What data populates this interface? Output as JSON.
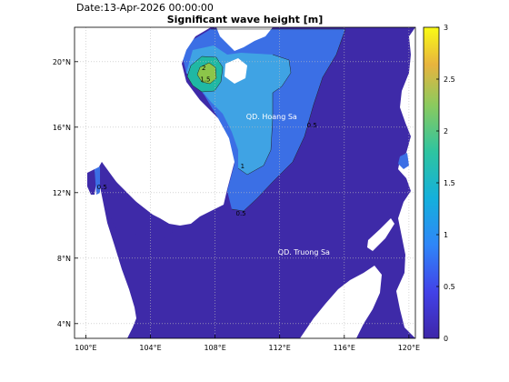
{
  "date_text": "Date:13-Apr-2026 00:00:00",
  "title": "Significant wave height [m]",
  "x_ticks": [
    {
      "lon": 100,
      "label": "100°E"
    },
    {
      "lon": 104,
      "label": "104°E"
    },
    {
      "lon": 108,
      "label": "108°E"
    },
    {
      "lon": 112,
      "label": "112°E"
    },
    {
      "lon": 116,
      "label": "116°E"
    },
    {
      "lon": 120,
      "label": "120°E"
    }
  ],
  "y_ticks": [
    {
      "lat": 20,
      "label": "20°N"
    },
    {
      "lat": 16,
      "label": "16°N"
    },
    {
      "lat": 12,
      "label": "12°N"
    },
    {
      "lat": 8,
      "label": "8°N"
    },
    {
      "lat": 4,
      "label": "4°N"
    }
  ],
  "colorbar": {
    "min": 0,
    "max": 3,
    "ticks": [
      {
        "value": 0,
        "label": "0"
      },
      {
        "value": 0.5,
        "label": "0.5"
      },
      {
        "value": 1,
        "label": "1"
      },
      {
        "value": 1.5,
        "label": "1.5"
      },
      {
        "value": 2,
        "label": "2"
      },
      {
        "value": 2.5,
        "label": "2.5"
      },
      {
        "value": 3,
        "label": "3"
      }
    ]
  },
  "places": [
    {
      "label": "QD. Hoang Sa",
      "lon": 111.5,
      "lat": 16.5
    },
    {
      "label": "QD. Truong Sa",
      "lon": 113.5,
      "lat": 8.2
    }
  ],
  "contour_labels": [
    {
      "text": "1.5",
      "lon": 107.4,
      "lat": 18.8
    },
    {
      "text": "2",
      "lon": 107.3,
      "lat": 19.5
    },
    {
      "text": "0.5",
      "lon": 109.6,
      "lat": 10.6
    },
    {
      "text": "0.5",
      "lon": 101.0,
      "lat": 12.2
    },
    {
      "text": "1",
      "lon": 109.7,
      "lat": 13.5
    },
    {
      "text": "0.5",
      "lon": 114.0,
      "lat": 16.0
    }
  ],
  "colors": {
    "level_0": "#3e2aa8",
    "level_05": "#3b6fe5",
    "level_1": "#3fa3e4",
    "level_15": "#1fb8a4",
    "level_2": "#8cc64a",
    "land": "#ffffff"
  }
}
